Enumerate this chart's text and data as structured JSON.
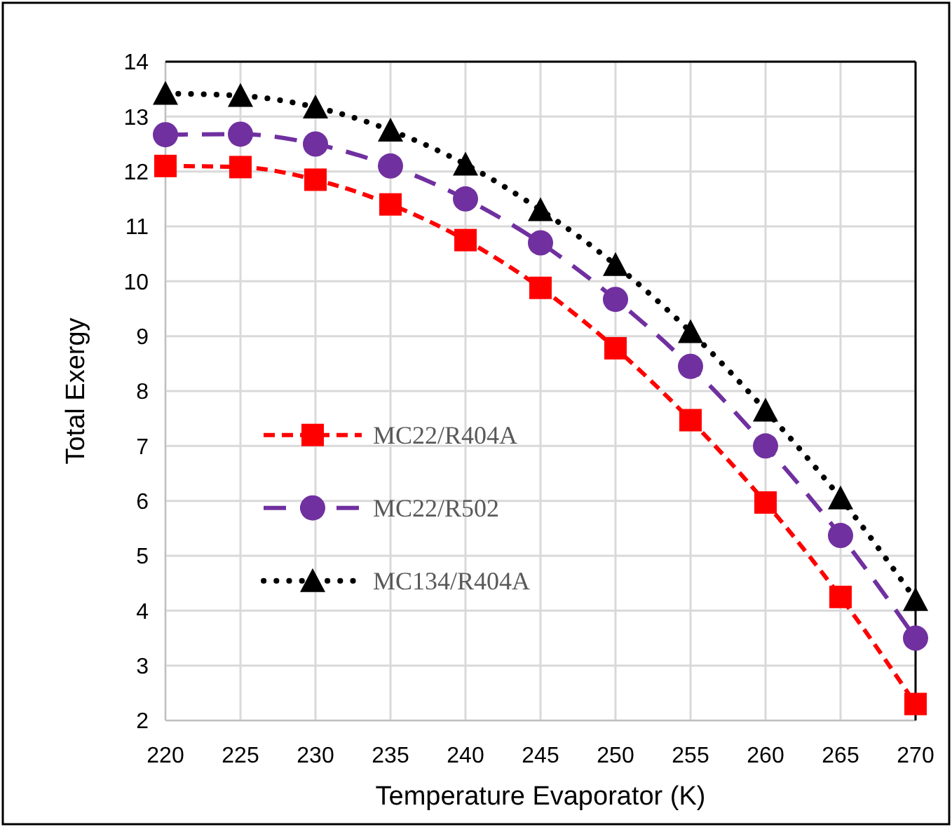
{
  "chart_data": {
    "type": "line",
    "xlabel": "Temperature Evaporator (K)",
    "ylabel": "Total Exergy",
    "x": [
      220,
      225,
      230,
      235,
      240,
      245,
      250,
      255,
      260,
      265,
      270
    ],
    "series": [
      {
        "name": "MC22/R404A",
        "color": "#ff0000",
        "marker": "square",
        "line_style": "dashed",
        "values": [
          12.1,
          12.08,
          11.85,
          11.4,
          10.75,
          9.88,
          8.78,
          7.47,
          5.97,
          4.25,
          2.3
        ]
      },
      {
        "name": "MC22/R502",
        "color": "#7030a0",
        "marker": "circle",
        "line_style": "longdash",
        "values": [
          12.67,
          12.68,
          12.5,
          12.1,
          11.5,
          10.7,
          9.67,
          8.45,
          7.0,
          5.37,
          3.5
        ]
      },
      {
        "name": "MC134/R404A",
        "color": "#000000",
        "marker": "triangle",
        "line_style": "dotted",
        "values": [
          13.42,
          13.38,
          13.17,
          12.75,
          12.13,
          11.3,
          10.3,
          9.08,
          7.65,
          6.05,
          4.2
        ]
      }
    ],
    "xlim": [
      220,
      270
    ],
    "xticks": [
      220,
      225,
      230,
      235,
      240,
      245,
      250,
      255,
      260,
      265,
      270
    ],
    "ylim": [
      2,
      14
    ],
    "yticks": [
      2,
      3,
      4,
      5,
      6,
      7,
      8,
      9,
      10,
      11,
      12,
      13,
      14
    ],
    "grid": true,
    "legend": "left"
  }
}
